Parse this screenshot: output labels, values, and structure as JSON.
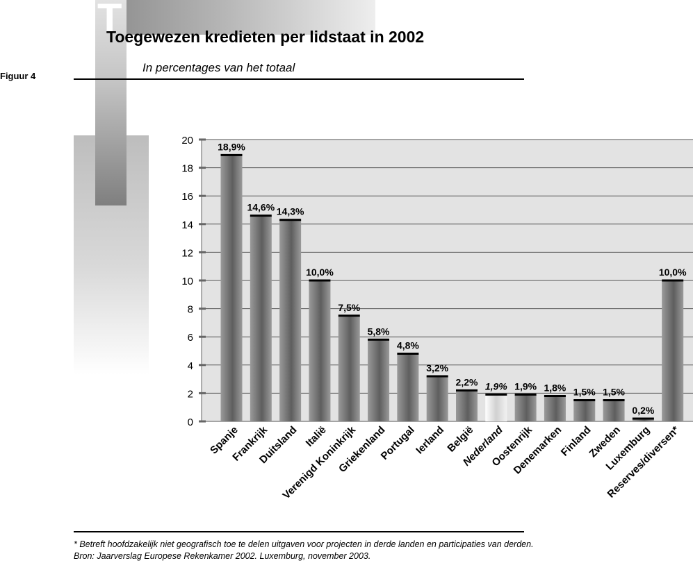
{
  "header": {
    "figure_label": "Figuur 4",
    "title": "Toegewezen kredieten per lidstaat in 2002",
    "subtitle": "In percentages van het totaal"
  },
  "footnote": {
    "line1": "* Betreft hoofdzakelijk niet geografisch toe te delen uitgaven voor projecten in derde landen en participaties van derden.",
    "line2": "Bron: Jaarverslag Europese Rekenkamer 2002. Luxemburg, november 2003."
  },
  "colors": {
    "plot_background": "#e3e3e3",
    "bar_dark": "#5e5e5e",
    "bar_light": "#9a9a9a",
    "highlight_bar": "#d0d0d0",
    "gridline": "#555555"
  },
  "chart_data": {
    "type": "bar",
    "title": "Toegewezen kredieten per lidstaat in 2002",
    "ylim": [
      0,
      20
    ],
    "yticks": [
      0,
      2,
      4,
      6,
      8,
      10,
      12,
      14,
      16,
      18,
      20
    ],
    "grid": true,
    "categories": [
      "Spanje",
      "Frankrijk",
      "Duitsland",
      "Italië",
      "Verenigd Koninkrijk",
      "Griekenland",
      "Portugal",
      "Ierland",
      "België",
      "Nederland",
      "Oostenrijk",
      "Denemarken",
      "Finland",
      "Zweden",
      "Luxemburg",
      "Reserves/diversen*"
    ],
    "values": [
      18.9,
      14.6,
      14.3,
      10.0,
      7.5,
      5.8,
      4.8,
      3.2,
      2.2,
      1.9,
      1.9,
      1.8,
      1.5,
      1.5,
      0.2,
      10.0
    ],
    "labels": [
      "18,9%",
      "14,6%",
      "14,3%",
      "10,0%",
      "7,5%",
      "5,8%",
      "4,8%",
      "3,2%",
      "2,2%",
      "1,9%",
      "1,9%",
      "1,8%",
      "1,5%",
      "1,5%",
      "0,2%",
      "10,0%"
    ],
    "highlighted_category": "Nederland"
  }
}
